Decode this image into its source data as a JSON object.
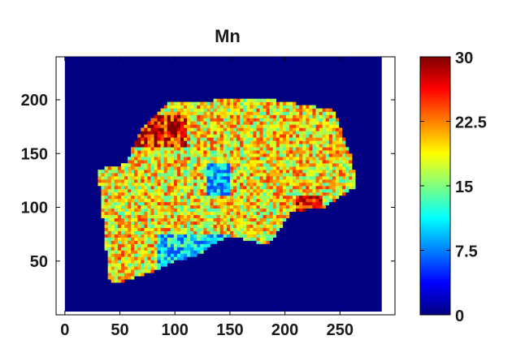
{
  "chart_data": {
    "type": "heatmap",
    "title": "Mn",
    "xlabel": "",
    "ylabel": "",
    "xlim": [
      -8,
      300
    ],
    "ylim": [
      0,
      240
    ],
    "data_extent": {
      "x": [
        0,
        288
      ],
      "y": [
        3,
        240
      ]
    },
    "x_ticks": [
      0,
      50,
      100,
      150,
      200,
      250
    ],
    "x_tick_labels": [
      "0",
      "50",
      "100",
      "150",
      "200",
      "250"
    ],
    "y_ticks": [
      50,
      100,
      150,
      200
    ],
    "y_tick_labels": [
      "50",
      "100",
      "150",
      "200"
    ],
    "colorbar": {
      "min": 0,
      "max": 30,
      "colormap": "jet",
      "ticks": [
        0,
        7.5,
        15,
        22.5,
        30
      ],
      "tick_labels": [
        "0",
        "7.5",
        "15",
        "22.5",
        "30"
      ]
    },
    "background_value": 0,
    "sample_outline": [
      [
        30,
        135
      ],
      [
        55,
        140
      ],
      [
        70,
        175
      ],
      [
        95,
        198
      ],
      [
        150,
        200
      ],
      [
        190,
        200
      ],
      [
        220,
        195
      ],
      [
        245,
        190
      ],
      [
        255,
        160
      ],
      [
        260,
        150
      ],
      [
        265,
        120
      ],
      [
        235,
        100
      ],
      [
        205,
        95
      ],
      [
        185,
        65
      ],
      [
        155,
        72
      ],
      [
        140,
        70
      ],
      [
        120,
        55
      ],
      [
        100,
        50
      ],
      [
        75,
        38
      ],
      [
        45,
        28
      ],
      [
        40,
        35
      ]
    ],
    "sample_typical_value": 19,
    "sample_value_range": [
      6,
      30
    ],
    "regions": [
      {
        "name": "high band top-left",
        "x": [
          55,
          110
        ],
        "y": [
          155,
          185
        ],
        "value": 26
      },
      {
        "name": "high patch right",
        "x": [
          210,
          235
        ],
        "y": [
          90,
          110
        ],
        "value": 27
      },
      {
        "name": "low spot center",
        "x": [
          130,
          150
        ],
        "y": [
          110,
          140
        ],
        "value": 8
      },
      {
        "name": "low region bottom",
        "x": [
          85,
          150
        ],
        "y": [
          35,
          75
        ],
        "value": 10
      }
    ]
  }
}
